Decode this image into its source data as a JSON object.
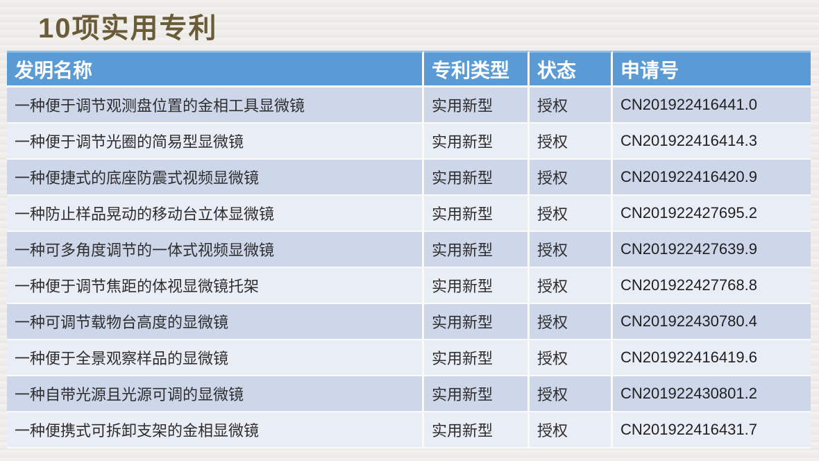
{
  "page": {
    "title": "10项实用专利"
  },
  "table": {
    "headers": [
      "发明名称",
      "专利类型",
      "状态",
      "申请号"
    ],
    "rows": [
      {
        "name": "一种便于调节观测盘位置的金相工具显微镜",
        "type": "实用新型",
        "status": "授权",
        "app_no": "CN201922416441.0"
      },
      {
        "name": "一种便于调节光圈的简易型显微镜",
        "type": "实用新型",
        "status": "授权",
        "app_no": "CN201922416414.3"
      },
      {
        "name": "一种便捷式的底座防震式视频显微镜",
        "type": "实用新型",
        "status": "授权",
        "app_no": "CN201922416420.9"
      },
      {
        "name": "一种防止样品晃动的移动台立体显微镜",
        "type": "实用新型",
        "status": "授权",
        "app_no": "CN201922427695.2"
      },
      {
        "name": "一种可多角度调节的一体式视频显微镜",
        "type": "实用新型",
        "status": "授权",
        "app_no": "CN201922427639.9"
      },
      {
        "name": "一种便于调节焦距的体视显微镜托架",
        "type": "实用新型",
        "status": "授权",
        "app_no": "CN201922427768.8"
      },
      {
        "name": "一种可调节载物台高度的显微镜",
        "type": "实用新型",
        "status": "授权",
        "app_no": "CN201922430780.4"
      },
      {
        "name": "一种便于全景观察样品的显微镜",
        "type": "实用新型",
        "status": "授权",
        "app_no": "CN201922416419.6"
      },
      {
        "name": "一种自带光源且光源可调的显微镜",
        "type": "实用新型",
        "status": "授权",
        "app_no": "CN201922430801.2"
      },
      {
        "name": "一种便携式可拆卸支架的金相显微镜",
        "type": "实用新型",
        "status": "授权",
        "app_no": "CN201922416431.7"
      }
    ]
  },
  "colors": {
    "title_color": "#6B5C39",
    "header_bg": "#5B9BD5",
    "header_top_border": "#8FBCE4",
    "row_dark": "#CDD7E9",
    "row_light": "#E9EDF5",
    "grid_line": "#FAFAF9"
  }
}
